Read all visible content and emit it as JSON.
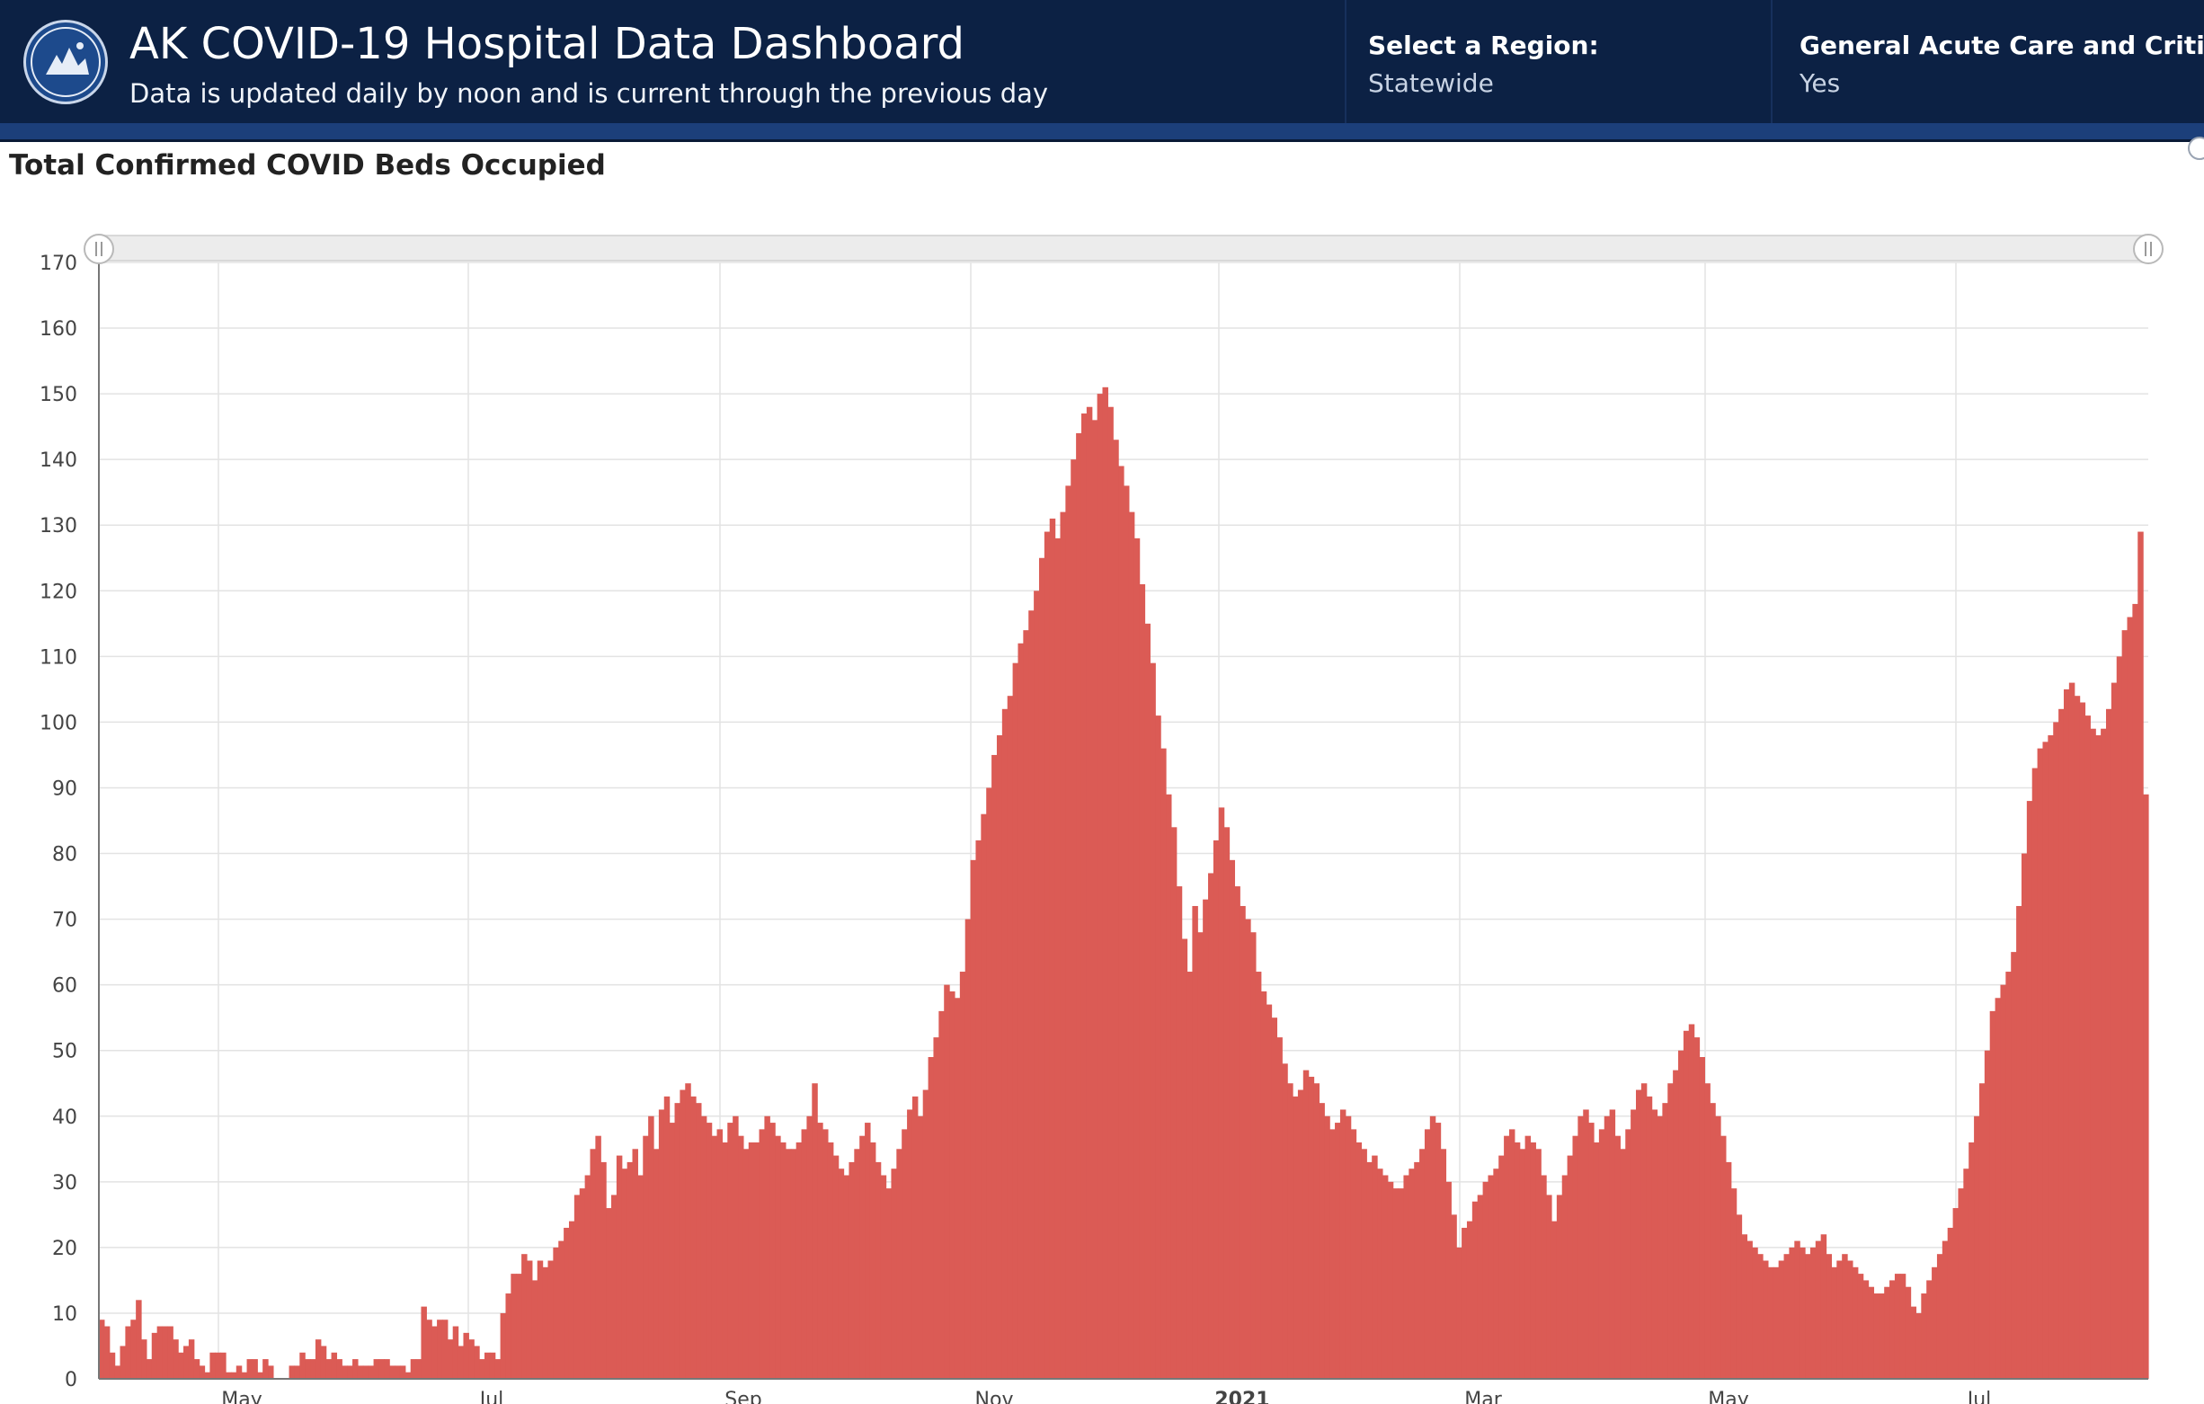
{
  "header": {
    "title": "AK COVID-19 Hospital Data Dashboard",
    "subtitle": "Data is updated daily by noon and is current through the previous day",
    "logo_icon": "state-of-alaska-seal-icon",
    "filters": [
      {
        "label": "Select a Region:",
        "value": "Statewide"
      },
      {
        "label": "General Acute Care and Critic...",
        "value": "Yes"
      }
    ]
  },
  "chart_title": "Total Confirmed COVID Beds Occupied",
  "colors": {
    "header_bg": "#0c2144",
    "header_band": "#1c3f7a",
    "bar": "#db5b55",
    "grid": "#e3e3e3"
  },
  "chart_data": {
    "type": "bar",
    "title": "Total Confirmed COVID Beds Occupied",
    "xlabel": "",
    "ylabel": "",
    "ylim": [
      0,
      170
    ],
    "yticks": [
      0,
      10,
      20,
      30,
      40,
      50,
      60,
      70,
      80,
      90,
      100,
      110,
      120,
      130,
      140,
      150,
      160,
      170
    ],
    "xticks": [
      "May",
      "Jul",
      "Sep",
      "Nov",
      "2021",
      "Mar",
      "May",
      "Jul"
    ],
    "grid": true,
    "series": [
      {
        "values": [
          9,
          8,
          4,
          2,
          5,
          8,
          9,
          12,
          6,
          3,
          7,
          8,
          8,
          8,
          6,
          4,
          5,
          6,
          3,
          2,
          1,
          4,
          4,
          4,
          1,
          1,
          2,
          1,
          3,
          3,
          1,
          3,
          2,
          0,
          0,
          0,
          2,
          2,
          4,
          3,
          3,
          6,
          5,
          3,
          4,
          3,
          2,
          2,
          3,
          2,
          2,
          2,
          3,
          3,
          3,
          2,
          2,
          2,
          1,
          3,
          3,
          11,
          9,
          8,
          9,
          9,
          6,
          8,
          5,
          7,
          6,
          5,
          3,
          4,
          4,
          3,
          10,
          13,
          16,
          16,
          19,
          18,
          15,
          18,
          17,
          18,
          20,
          21,
          23,
          24,
          28,
          29,
          31,
          35,
          37,
          33,
          26,
          28,
          34,
          32,
          33,
          35,
          31,
          37,
          40,
          35,
          41,
          43,
          39,
          42,
          44,
          45,
          43,
          42,
          40,
          39,
          37,
          38,
          36,
          39,
          40,
          37,
          35,
          36,
          36,
          38,
          40,
          39,
          37,
          36,
          35,
          35,
          36,
          38,
          40,
          45,
          39,
          38,
          36,
          34,
          32,
          31,
          33,
          35,
          37,
          39,
          36,
          33,
          31,
          29,
          32,
          35,
          38,
          41,
          43,
          40,
          44,
          49,
          52,
          56,
          60,
          59,
          58,
          62,
          70,
          79,
          82,
          86,
          90,
          95,
          98,
          102,
          104,
          109,
          112,
          114,
          117,
          120,
          125,
          129,
          131,
          128,
          132,
          136,
          140,
          144,
          147,
          148,
          146,
          150,
          151,
          148,
          143,
          139,
          136,
          132,
          128,
          121,
          115,
          109,
          101,
          96,
          89,
          84,
          75,
          67,
          62,
          72,
          68,
          73,
          77,
          82,
          87,
          84,
          79,
          75,
          72,
          70,
          68,
          62,
          59,
          57,
          55,
          52,
          48,
          45,
          43,
          44,
          47,
          46,
          45,
          42,
          40,
          38,
          39,
          41,
          40,
          38,
          36,
          35,
          33,
          34,
          32,
          31,
          30,
          29,
          29,
          31,
          32,
          33,
          35,
          38,
          40,
          39,
          35,
          30,
          25,
          20,
          23,
          24,
          27,
          28,
          30,
          31,
          32,
          34,
          37,
          38,
          36,
          35,
          37,
          36,
          35,
          31,
          28,
          24,
          28,
          31,
          34,
          37,
          40,
          41,
          39,
          36,
          38,
          40,
          41,
          37,
          35,
          38,
          41,
          44,
          45,
          43,
          41,
          40,
          42,
          45,
          47,
          50,
          53,
          54,
          52,
          49,
          45,
          42,
          40,
          37,
          33,
          29,
          25,
          22,
          21,
          20,
          19,
          18,
          17,
          17,
          18,
          19,
          20,
          21,
          20,
          19,
          20,
          21,
          22,
          19,
          17,
          18,
          19,
          18,
          17,
          16,
          15,
          14,
          13,
          13,
          14,
          15,
          16,
          16,
          14,
          11,
          10,
          13,
          15,
          17,
          19,
          21,
          23,
          26,
          29,
          32,
          36,
          40,
          45,
          50,
          56,
          58,
          60,
          62,
          65,
          72,
          80,
          88,
          93,
          96,
          97,
          98,
          100,
          102,
          105,
          106,
          104,
          103,
          101,
          99,
          98,
          99,
          102,
          106,
          110,
          114,
          116,
          118,
          129,
          89
        ]
      }
    ]
  }
}
